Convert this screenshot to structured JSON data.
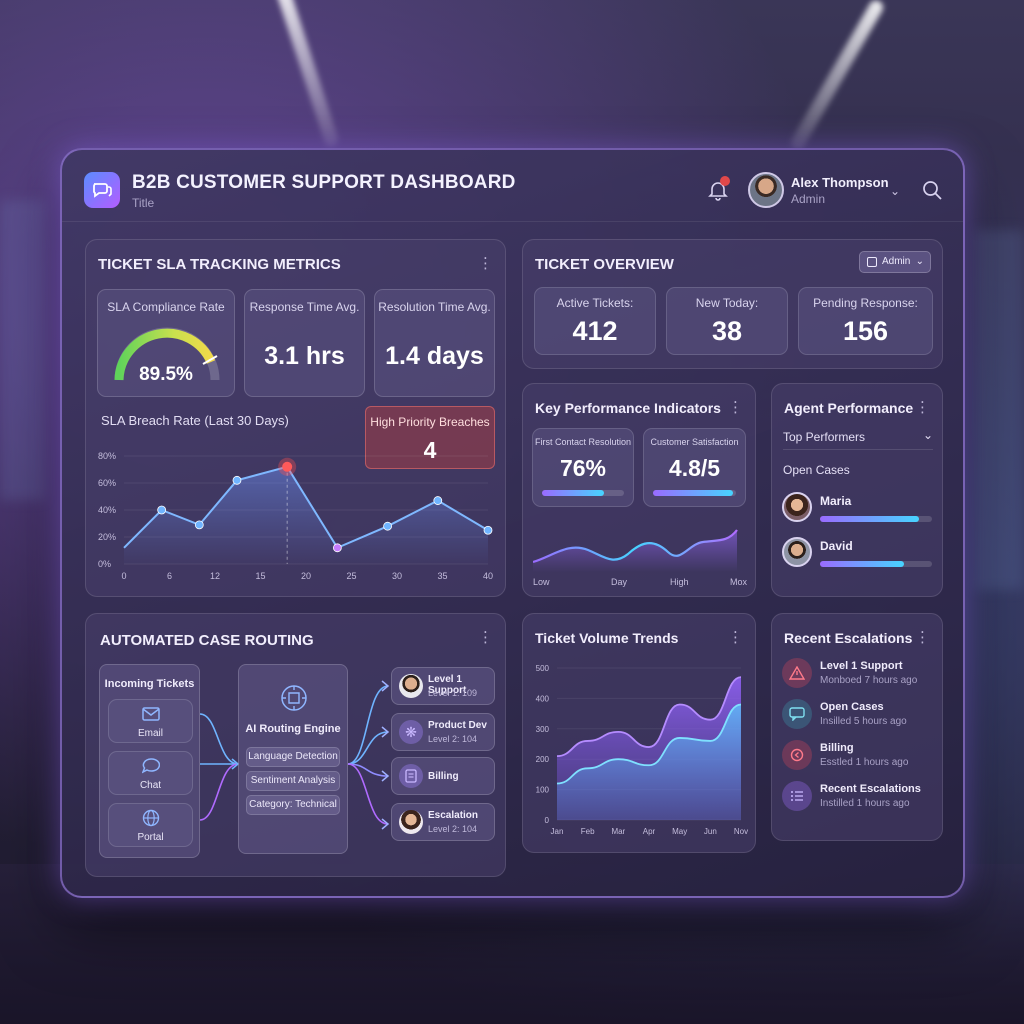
{
  "header": {
    "title": "B2B CUSTOMER SUPPORT DASHBOARD",
    "subtitle": "Title",
    "user_name": "Alex Thompson",
    "user_role": "Admin",
    "notification_count": "1"
  },
  "sla": {
    "title": "TICKET SLA TRACKING METRICS",
    "compliance_label": "SLA Compliance Rate",
    "compliance_value": "89.5%",
    "compliance_pct": 89.5,
    "response_label": "Response Time Avg.",
    "response_value": "3.1 hrs",
    "resolution_label": "Resolution Time Avg.",
    "resolution_value": "1.4 days",
    "breach_chart_label": "SLA Breach Rate (Last 30 Days)",
    "high_priority_label": "High Priority Breaches",
    "high_priority_value": "4"
  },
  "overview": {
    "title": "TICKET OVERVIEW",
    "filter_label": "Admin",
    "active_label": "Active Tickets:",
    "active_value": "412",
    "new_label": "New Today:",
    "new_value": "38",
    "pending_label": "Pending Response:",
    "pending_value": "156"
  },
  "kpi": {
    "title": "Key Performance Indicators",
    "fcr_label": "First Contact Resolution",
    "fcr_value": "76%",
    "fcr_pct": 76,
    "csat_label": "Customer Satisfaction",
    "csat_value": "4.8/5",
    "csat_pct": 96,
    "axis": [
      "Low",
      "Day",
      "High",
      "Mox"
    ]
  },
  "agents": {
    "title": "Agent Performance",
    "top_label": "Top Performers",
    "open_label": "Open Cases",
    "list": [
      {
        "name": "Maria",
        "score": 88
      },
      {
        "name": "David",
        "score": 75
      }
    ]
  },
  "routing": {
    "title": "AUTOMATED CASE ROUTING",
    "incoming_label": "Incoming Tickets",
    "channels": [
      "Email",
      "Chat",
      "Portal"
    ],
    "engine_label": "AI Routing Engine",
    "engine_chips": [
      "Language Detection",
      "Sentiment Analysis",
      "Category: Technical"
    ],
    "destinations": [
      {
        "name": "Level 1 Support",
        "detail": "Level 1: 109"
      },
      {
        "name": "Product Dev",
        "detail": "Level 2: 104"
      },
      {
        "name": "Billing",
        "detail": ""
      },
      {
        "name": "Escalation",
        "detail": "Level 2: 104"
      }
    ]
  },
  "volume": {
    "title": "Ticket Volume Trends"
  },
  "escalations": {
    "title": "Recent Escalations",
    "items": [
      {
        "title": "Level 1 Support",
        "sub": "Monboed 7 hours ago"
      },
      {
        "title": "Open Cases",
        "sub": "Insilled 5 hours ago"
      },
      {
        "title": "Billing",
        "sub": "Esstled 1 hours ago"
      },
      {
        "title": "Recent Escalations",
        "sub": "Instilled 1 hours ago"
      }
    ]
  },
  "colors": {
    "accent_purple": "#9a6bff",
    "accent_cyan": "#47d4ff",
    "danger": "#e0484a",
    "gauge_green": "#5fd35a",
    "gauge_yellow": "#f0d94a"
  },
  "chart_data": [
    {
      "type": "line",
      "title": "SLA Breach Rate (Last 30 Days)",
      "x": [
        0,
        6,
        12,
        15,
        20,
        25,
        30,
        35,
        40
      ],
      "x_points": [
        0,
        3,
        6,
        9,
        13,
        17,
        21,
        25,
        29
      ],
      "y": [
        12,
        40,
        29,
        62,
        72,
        12,
        28,
        47,
        25
      ],
      "ylim": [
        0,
        80
      ],
      "yticks": [
        "0%",
        "20%",
        "40%",
        "60%",
        "80%"
      ],
      "xticks": [
        "0",
        "6",
        "12",
        "15",
        "20",
        "25",
        "30",
        "35",
        "40"
      ],
      "highlight_index": 4
    },
    {
      "type": "area",
      "title": "Ticket Volume Trends",
      "categories": [
        "Jan",
        "Feb",
        "Mar",
        "Apr",
        "May",
        "Jun",
        "Nov"
      ],
      "series": [
        {
          "values": [
            210,
            260,
            290,
            240,
            380,
            330,
            470
          ]
        },
        {
          "values": [
            120,
            170,
            200,
            180,
            270,
            260,
            380
          ]
        }
      ],
      "ylim": [
        0,
        500
      ],
      "yticks": [
        "0",
        "100",
        "200",
        "300",
        "400",
        "500"
      ]
    }
  ]
}
